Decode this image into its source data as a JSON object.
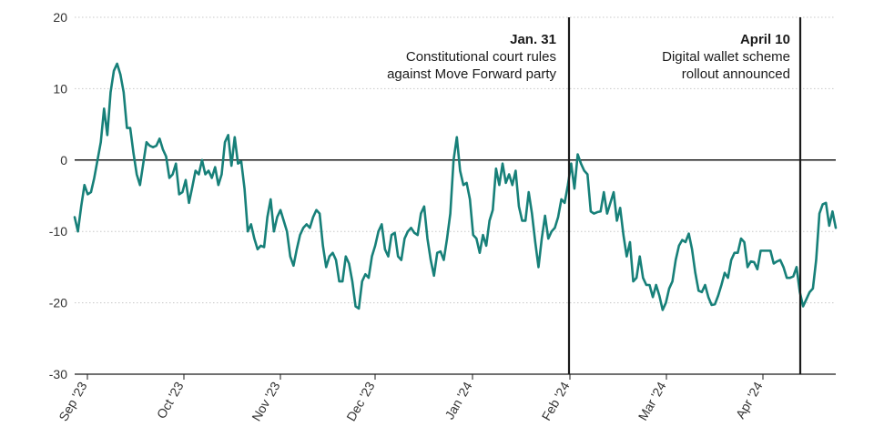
{
  "chart_data": {
    "type": "line",
    "title": "",
    "xlabel": "",
    "ylabel": "",
    "ylim": [
      -30,
      20
    ],
    "y_ticks": [
      20,
      10,
      0,
      -10,
      -20,
      -30
    ],
    "grid": "horizontal dotted",
    "line_color": "#178079",
    "x_ticks": [
      "Sep '23",
      "Oct '23",
      "Nov '23",
      "Dec '23",
      "Jan '24",
      "Feb '24",
      "Mar '24",
      "Apr '24"
    ],
    "series": [
      {
        "values": [
          -8,
          -10,
          -6.5,
          -3.5,
          -4.8,
          -4.5,
          -2.5,
          0,
          2.5,
          7.2,
          3.5,
          9.5,
          12.5,
          13.5,
          12,
          9.5,
          4.5,
          4.5,
          1,
          -2,
          -3.5,
          -0.5,
          2.5,
          2,
          1.8,
          2,
          3,
          1.5,
          0.5,
          -2.5,
          -2,
          -0.5,
          -4.8,
          -4.5,
          -2.8,
          -6,
          -3.8,
          -1.5,
          -2,
          0,
          -2,
          -1.5,
          -2.5,
          -1,
          -3.5,
          -2,
          2.5,
          3.5,
          -0.8,
          3.2,
          -0.5,
          -0.2,
          -4,
          -10,
          -9,
          -11,
          -12.5,
          -12,
          -12.2,
          -8,
          -5.5,
          -10,
          -8,
          -7,
          -8.5,
          -10,
          -13.5,
          -14.8,
          -12.5,
          -10.5,
          -9.5,
          -9,
          -9.5,
          -8,
          -7,
          -7.5,
          -12,
          -15,
          -13.5,
          -13,
          -14,
          -17,
          -17,
          -13.5,
          -14.5,
          -17,
          -20.5,
          -20.8,
          -17,
          -16,
          -16.5,
          -13.5,
          -12,
          -10,
          -9,
          -12.5,
          -13.5,
          -10.5,
          -10.2,
          -13.5,
          -14,
          -11,
          -10,
          -9.5,
          -10.2,
          -10.5,
          -7.5,
          -6.5,
          -11,
          -14,
          -16.2,
          -13,
          -12.8,
          -14,
          -11,
          -7.5,
          0,
          3.2,
          -1.5,
          -3.5,
          -3.2,
          -5.5,
          -10.5,
          -11,
          -13,
          -10.5,
          -12,
          -8.5,
          -7,
          -1.2,
          -3.5,
          -0.5,
          -3.2,
          -2,
          -3.5,
          -1.5,
          -6.5,
          -8.5,
          -8.5,
          -4.5,
          -7.5,
          -11.5,
          -15,
          -11,
          -7.8,
          -11,
          -10,
          -9.5,
          -8,
          -5.5,
          -6,
          -3.5,
          -0.5,
          -4,
          0.8,
          -0.5,
          -1.5,
          -2,
          -7.2,
          -7.5,
          -7.3,
          -7.2,
          -4.5,
          -7.5,
          -6,
          -4.5,
          -8.5,
          -6.7,
          -10.5,
          -13.5,
          -11.5,
          -17,
          -16.5,
          -13.5,
          -16.5,
          -17.5,
          -17.5,
          -19.2,
          -17.5,
          -19,
          -21,
          -20,
          -18,
          -17,
          -14,
          -12,
          -11.2,
          -11.5,
          -10.3,
          -12.5,
          -15.8,
          -18.3,
          -18.5,
          -17.5,
          -19.2,
          -20.3,
          -20.2,
          -19,
          -17.5,
          -15.8,
          -16.5,
          -14,
          -13,
          -13,
          -11,
          -11.5,
          -15,
          -14.2,
          -14.3,
          -15.3,
          -12.7,
          -12.7,
          -12.7,
          -12.7,
          -14.5,
          -14.2,
          -14,
          -15,
          -16.5,
          -16.5,
          -16.3,
          -15,
          -18.5,
          -20.5,
          -19.5,
          -18.5,
          -18,
          -14,
          -7.5,
          -6.2,
          -6,
          -9.2,
          -7.2,
          -9.5
        ]
      }
    ],
    "annotations": [
      {
        "date_label": "Jan. 31",
        "line1": "Constitutional court rules",
        "line2": "against Move Forward party"
      },
      {
        "date_label": "April 10",
        "line1": "Digital wallet scheme",
        "line2": "rollout announced"
      }
    ]
  }
}
